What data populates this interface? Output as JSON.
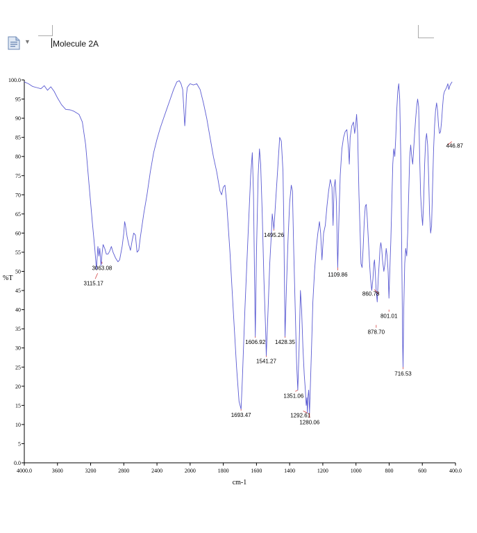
{
  "document": {
    "title": "Molecule 2A",
    "icon": "document-icon",
    "caret_icon": "chevron-down-icon"
  },
  "chart_data": {
    "type": "line",
    "title": "",
    "xlabel": "cm-1",
    "ylabel": "%T",
    "xlim": [
      4000,
      400
    ],
    "ylim": [
      0,
      100
    ],
    "x_reversed": true,
    "x_ticks": [
      "4000.0",
      "3600",
      "3200",
      "2800",
      "2400",
      "2000",
      "1800",
      "1600",
      "1400",
      "1200",
      "1000",
      "800",
      "600",
      "400.0"
    ],
    "y_ticks": [
      "0.0",
      "5",
      "10",
      "15",
      "20",
      "25",
      "30",
      "35",
      "40",
      "45",
      "50",
      "55",
      "60",
      "65",
      "70",
      "75",
      "80",
      "85",
      "90",
      "95",
      "100.0"
    ],
    "line_color": "#5a5ad2",
    "marker_color": "#d04040",
    "series": [
      {
        "points": [
          [
            4000,
            99.5
          ],
          [
            3950,
            99
          ],
          [
            3900,
            98.3
          ],
          [
            3850,
            98
          ],
          [
            3800,
            97.7
          ],
          [
            3760,
            98.5
          ],
          [
            3720,
            97.3
          ],
          [
            3680,
            98.2
          ],
          [
            3640,
            97
          ],
          [
            3600,
            95.3
          ],
          [
            3550,
            93.5
          ],
          [
            3500,
            92.3
          ],
          [
            3450,
            92.2
          ],
          [
            3400,
            91.8
          ],
          [
            3340,
            91
          ],
          [
            3300,
            89
          ],
          [
            3260,
            83
          ],
          [
            3220,
            73
          ],
          [
            3180,
            63
          ],
          [
            3150,
            56
          ],
          [
            3130,
            50.5
          ],
          [
            3120,
            54
          ],
          [
            3112,
            56.5
          ],
          [
            3100,
            54
          ],
          [
            3090,
            56
          ],
          [
            3075,
            51.5
          ],
          [
            3063,
            54.5
          ],
          [
            3050,
            57
          ],
          [
            3030,
            56
          ],
          [
            3010,
            54.5
          ],
          [
            2990,
            54.5
          ],
          [
            2970,
            55.3
          ],
          [
            2950,
            56.5
          ],
          [
            2930,
            55
          ],
          [
            2900,
            53.5
          ],
          [
            2870,
            52.5
          ],
          [
            2850,
            53
          ],
          [
            2820,
            56.5
          ],
          [
            2800,
            60
          ],
          [
            2790,
            63
          ],
          [
            2780,
            62
          ],
          [
            2760,
            59
          ],
          [
            2740,
            57
          ],
          [
            2720,
            55.5
          ],
          [
            2700,
            58
          ],
          [
            2680,
            60
          ],
          [
            2660,
            59.5
          ],
          [
            2640,
            55
          ],
          [
            2620,
            55.5
          ],
          [
            2600,
            59
          ],
          [
            2560,
            65
          ],
          [
            2520,
            70
          ],
          [
            2480,
            76
          ],
          [
            2440,
            81
          ],
          [
            2400,
            84.5
          ],
          [
            2360,
            87.5
          ],
          [
            2320,
            90
          ],
          [
            2280,
            92.5
          ],
          [
            2240,
            95
          ],
          [
            2200,
            97.5
          ],
          [
            2160,
            99.5
          ],
          [
            2130,
            99.8
          ],
          [
            2110,
            99
          ],
          [
            2090,
            97.5
          ],
          [
            2075,
            92
          ],
          [
            2065,
            88
          ],
          [
            2055,
            91
          ],
          [
            2045,
            96
          ],
          [
            2035,
            98
          ],
          [
            2020,
            98.5
          ],
          [
            2000,
            99
          ],
          [
            1980,
            98.7
          ],
          [
            1960,
            99
          ],
          [
            1940,
            97.5
          ],
          [
            1920,
            94
          ],
          [
            1900,
            90
          ],
          [
            1880,
            85
          ],
          [
            1860,
            80
          ],
          [
            1840,
            76
          ],
          [
            1820,
            71
          ],
          [
            1810,
            70
          ],
          [
            1800,
            72
          ],
          [
            1790,
            72.5
          ],
          [
            1780,
            68
          ],
          [
            1760,
            55
          ],
          [
            1740,
            40
          ],
          [
            1720,
            25
          ],
          [
            1705,
            16
          ],
          [
            1693,
            14
          ],
          [
            1685,
            22
          ],
          [
            1670,
            40
          ],
          [
            1650,
            60
          ],
          [
            1635,
            75
          ],
          [
            1625,
            81
          ],
          [
            1618,
            70
          ],
          [
            1612,
            50
          ],
          [
            1607,
            33
          ],
          [
            1600,
            55
          ],
          [
            1590,
            75
          ],
          [
            1582,
            82
          ],
          [
            1575,
            78
          ],
          [
            1565,
            65
          ],
          [
            1555,
            48
          ],
          [
            1545,
            35
          ],
          [
            1541,
            28
          ],
          [
            1530,
            40
          ],
          [
            1520,
            52
          ],
          [
            1510,
            60
          ],
          [
            1505,
            65
          ],
          [
            1500,
            63
          ],
          [
            1495,
            61
          ],
          [
            1485,
            68
          ],
          [
            1470,
            78
          ],
          [
            1460,
            85
          ],
          [
            1450,
            84
          ],
          [
            1440,
            76
          ],
          [
            1435,
            62
          ],
          [
            1428,
            33
          ],
          [
            1420,
            45
          ],
          [
            1410,
            58
          ],
          [
            1400,
            68
          ],
          [
            1390,
            72.5
          ],
          [
            1383,
            71
          ],
          [
            1375,
            55
          ],
          [
            1365,
            38
          ],
          [
            1358,
            26
          ],
          [
            1351,
            19
          ],
          [
            1343,
            30
          ],
          [
            1335,
            45
          ],
          [
            1328,
            40
          ],
          [
            1320,
            30
          ],
          [
            1312,
            23
          ],
          [
            1305,
            19
          ],
          [
            1300,
            15
          ],
          [
            1296,
            17
          ],
          [
            1293,
            13
          ],
          [
            1290,
            17
          ],
          [
            1285,
            19
          ],
          [
            1280,
            13
          ],
          [
            1275,
            20
          ],
          [
            1268,
            30
          ],
          [
            1260,
            42
          ],
          [
            1250,
            50
          ],
          [
            1240,
            56
          ],
          [
            1230,
            60
          ],
          [
            1220,
            63
          ],
          [
            1213,
            60
          ],
          [
            1205,
            53
          ],
          [
            1195,
            60
          ],
          [
            1185,
            62
          ],
          [
            1175,
            67
          ],
          [
            1165,
            71
          ],
          [
            1155,
            74
          ],
          [
            1145,
            72
          ],
          [
            1138,
            62
          ],
          [
            1132,
            72
          ],
          [
            1125,
            74
          ],
          [
            1118,
            68
          ],
          [
            1110,
            51
          ],
          [
            1102,
            65
          ],
          [
            1095,
            75
          ],
          [
            1085,
            82
          ],
          [
            1075,
            85
          ],
          [
            1065,
            86.5
          ],
          [
            1055,
            87
          ],
          [
            1045,
            82
          ],
          [
            1040,
            78
          ],
          [
            1035,
            85
          ],
          [
            1025,
            88
          ],
          [
            1015,
            89
          ],
          [
            1008,
            86
          ],
          [
            1002,
            88
          ],
          [
            996,
            91
          ],
          [
            990,
            86
          ],
          [
            982,
            70
          ],
          [
            975,
            60
          ],
          [
            970,
            52
          ],
          [
            963,
            51
          ],
          [
            957,
            56
          ],
          [
            950,
            63
          ],
          [
            944,
            67
          ],
          [
            938,
            67.5
          ],
          [
            932,
            64
          ],
          [
            925,
            58
          ],
          [
            918,
            52
          ],
          [
            912,
            48
          ],
          [
            905,
            45
          ],
          [
            898,
            48
          ],
          [
            892,
            52
          ],
          [
            888,
            53
          ],
          [
            884,
            50
          ],
          [
            878,
            45
          ],
          [
            872,
            42
          ],
          [
            866,
            48
          ],
          [
            860,
            52
          ],
          [
            855,
            56
          ],
          [
            850,
            57.5
          ],
          [
            845,
            56
          ],
          [
            840,
            53
          ],
          [
            832,
            50
          ],
          [
            825,
            52
          ],
          [
            818,
            56
          ],
          [
            812,
            54
          ],
          [
            806,
            50
          ],
          [
            801,
            43
          ],
          [
            796,
            50
          ],
          [
            790,
            58
          ],
          [
            784,
            68
          ],
          [
            778,
            78
          ],
          [
            772,
            82
          ],
          [
            766,
            80
          ],
          [
            760,
            85
          ],
          [
            754,
            92
          ],
          [
            748,
            97
          ],
          [
            742,
            99
          ],
          [
            736,
            95
          ],
          [
            730,
            80
          ],
          [
            724,
            55
          ],
          [
            718,
            30
          ],
          [
            716,
            25
          ],
          [
            712,
            40
          ],
          [
            706,
            52
          ],
          [
            700,
            56
          ],
          [
            694,
            54
          ],
          [
            688,
            60
          ],
          [
            682,
            70
          ],
          [
            676,
            80
          ],
          [
            670,
            83
          ],
          [
            664,
            80
          ],
          [
            658,
            78
          ],
          [
            652,
            82
          ],
          [
            646,
            86
          ],
          [
            640,
            90
          ],
          [
            634,
            93
          ],
          [
            628,
            95
          ],
          [
            622,
            93
          ],
          [
            616,
            80
          ],
          [
            610,
            70
          ],
          [
            604,
            65
          ],
          [
            598,
            62
          ],
          [
            592,
            68
          ],
          [
            586,
            78
          ],
          [
            580,
            84
          ],
          [
            574,
            86
          ],
          [
            568,
            83
          ],
          [
            562,
            75
          ],
          [
            556,
            65
          ],
          [
            550,
            60
          ],
          [
            544,
            62
          ],
          [
            538,
            72
          ],
          [
            532,
            82
          ],
          [
            526,
            88
          ],
          [
            520,
            92
          ],
          [
            514,
            94
          ],
          [
            508,
            92
          ],
          [
            502,
            88
          ],
          [
            496,
            86
          ],
          [
            490,
            86.5
          ],
          [
            484,
            89
          ],
          [
            478,
            93
          ],
          [
            472,
            96
          ],
          [
            466,
            97
          ],
          [
            460,
            97.5
          ],
          [
            454,
            98
          ],
          [
            446,
            99
          ],
          [
            440,
            97.5
          ],
          [
            434,
            98.5
          ],
          [
            428,
            99
          ],
          [
            420,
            99.5
          ]
        ]
      }
    ],
    "annotations": [
      {
        "label": "3063.08",
        "x": 3063,
        "y": 52.5
      },
      {
        "label": "3115.17",
        "x": 3115,
        "y": 49.5
      },
      {
        "label": "1693.47",
        "x": 1693,
        "y": 14
      },
      {
        "label": "1606.92",
        "x": 1607,
        "y": 33
      },
      {
        "label": "1541.27",
        "x": 1541,
        "y": 28
      },
      {
        "label": "1495.26",
        "x": 1495,
        "y": 61
      },
      {
        "label": "1428.35",
        "x": 1428,
        "y": 33
      },
      {
        "label": "1351.06",
        "x": 1351,
        "y": 19
      },
      {
        "label": "1292.61",
        "x": 1293,
        "y": 13
      },
      {
        "label": "1280.06",
        "x": 1280,
        "y": 13
      },
      {
        "label": "1109.86",
        "x": 1110,
        "y": 51
      },
      {
        "label": "860.78",
        "x": 860,
        "y": 44
      },
      {
        "label": "878.70",
        "x": 878,
        "y": 36
      },
      {
        "label": "801.01",
        "x": 801,
        "y": 40
      },
      {
        "label": "716.53",
        "x": 716,
        "y": 25
      },
      {
        "label": "446.87",
        "x": 447,
        "y": 83
      }
    ]
  }
}
